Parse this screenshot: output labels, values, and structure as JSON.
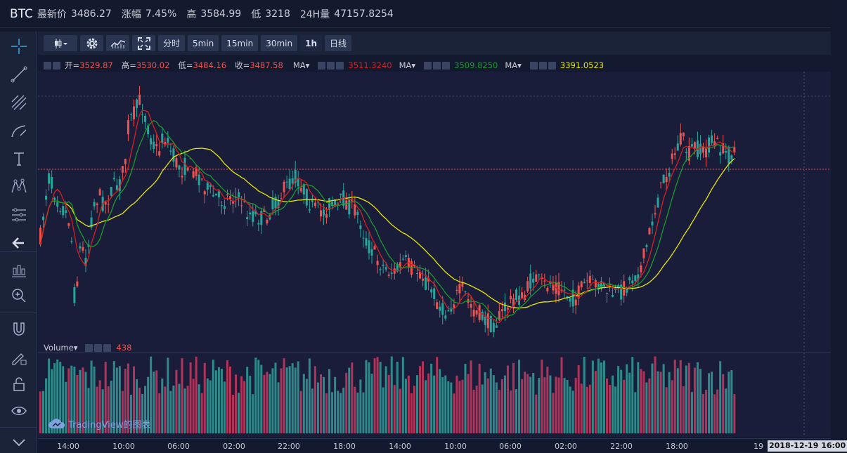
{
  "ticker": {
    "symbol": "BTC",
    "last_label": "最新价",
    "last": "3486.27",
    "change_label": "涨幅",
    "change": "7.45%",
    "high_label": "高",
    "high": "3584.99",
    "low_label": "低",
    "low": "3218",
    "vol24_label": "24H量",
    "vol24": "47157.8254"
  },
  "toolbar": {
    "intervals": [
      "分时",
      "5min",
      "15min",
      "30min",
      "1h",
      "日线"
    ],
    "active_interval": "1h"
  },
  "legend": {
    "open_label": "开=",
    "open": "3529.87",
    "high_label": "高=",
    "high": "3530.02",
    "low_label": "低=",
    "low": "3484.16",
    "close_label": "收=",
    "close": "3487.58",
    "ma_label": "MA▾",
    "ma1": "3511.3240",
    "ma2": "3509.8250",
    "ma3": "3391.0523"
  },
  "volume": {
    "label": "Volume▾",
    "value": "438"
  },
  "watermark": "TradingView的图表",
  "colors": {
    "up": "#26a69a",
    "down": "#ef5350",
    "ma1": "#d62020",
    "ma2": "#1a9a2a",
    "ma3": "#e6e600",
    "background": "#191d3a"
  },
  "icons": [
    "crosshair-icon",
    "trendline-icon",
    "fib-icon",
    "brush-icon",
    "text-icon",
    "pattern-icon",
    "measure-icon",
    "back-icon",
    "bar-icon",
    "zoom-icon",
    "magnet-icon",
    "lock-draw-icon",
    "lock-icon",
    "eye-icon",
    "chevron-down-icon"
  ],
  "chart_data": {
    "type": "candlestick",
    "x_ticks": [
      "14:00",
      "10:00",
      "06:00",
      "02:00",
      "22:00",
      "18:00",
      "14:00",
      "10:00",
      "06:00",
      "02:00",
      "22:00",
      "18:00",
      "19"
    ],
    "cursor_label": "2018-12-19 16:00",
    "last_price_marker": "3486.27",
    "visible_range": [
      3218,
      3584.99
    ],
    "series": [
      {
        "name": "MA",
        "value": "3511.3240"
      },
      {
        "name": "MA",
        "value": "3509.8250"
      },
      {
        "name": "MA",
        "value": "3391.0523"
      }
    ]
  }
}
